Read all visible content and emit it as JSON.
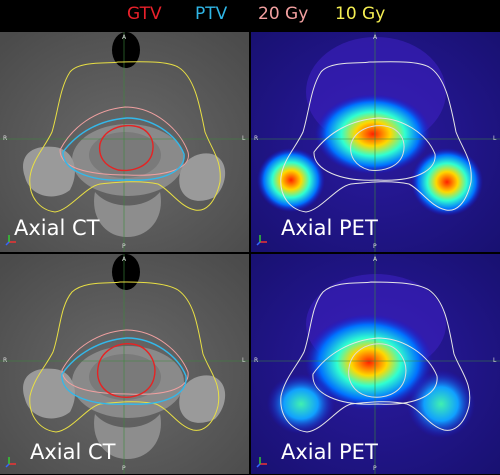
{
  "legend": {
    "gtv": {
      "label": "GTV",
      "color": "#e8202a"
    },
    "ptv": {
      "label": "PTV",
      "color": "#2fb6e6"
    },
    "dose20": {
      "label": "20 Gy",
      "color": "#f2a0a0"
    },
    "dose10": {
      "label": "10 Gy",
      "color": "#f4ee52"
    }
  },
  "panels": [
    {
      "caption": "Axial CT",
      "modality": "CT"
    },
    {
      "caption": "Axial PET",
      "modality": "PET"
    },
    {
      "caption": "Axial CT",
      "modality": "CT"
    },
    {
      "caption": "Axial PET",
      "modality": "PET"
    }
  ],
  "orientation": {
    "anterior": "A",
    "posterior": "P",
    "right": "R",
    "left": "L"
  },
  "icons": {
    "axes": "orientation-axes-icon"
  }
}
